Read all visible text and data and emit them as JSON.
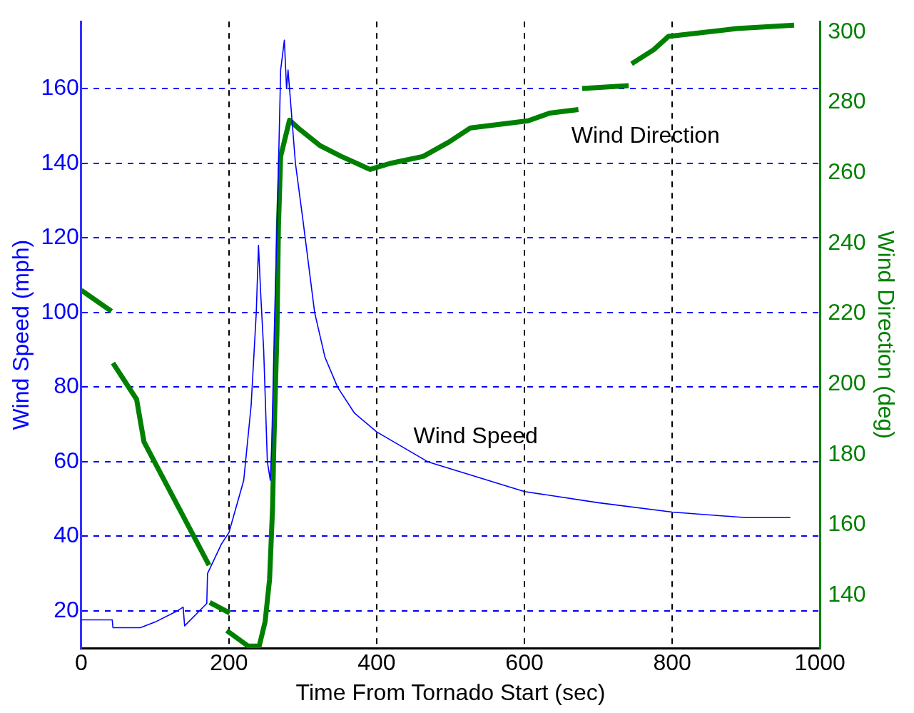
{
  "chart_data": {
    "type": "line",
    "xlabel": "Time From Tornado Start (sec)",
    "ylabel": "Wind Speed (mph)",
    "y2label": "Wind Direction (deg)",
    "xlim": [
      0,
      1000
    ],
    "xticks": [
      0,
      200,
      400,
      600,
      800,
      1000
    ],
    "ylim": [
      10,
      178
    ],
    "yticks": [
      20,
      40,
      60,
      80,
      100,
      120,
      140,
      160
    ],
    "y2lim": [
      125,
      303
    ],
    "y2ticks": [
      140,
      160,
      180,
      200,
      220,
      240,
      260,
      280,
      300
    ],
    "grid": true,
    "marker": "none",
    "line_style": "solid",
    "series": [
      {
        "color": "#0000ff",
        "x": [
          0,
          42,
          43,
          80,
          100,
          130,
          138,
          140,
          170,
          171,
          190,
          200,
          220,
          230,
          237,
          240,
          243,
          247,
          252,
          256,
          258,
          262,
          266,
          270,
          275,
          278,
          280,
          290,
          300,
          316,
          330,
          347,
          370,
          400,
          469,
          600,
          700,
          800,
          900,
          960
        ],
        "values": [
          17.6,
          17.6,
          15.5,
          15.5,
          17,
          20,
          21,
          16,
          22,
          30,
          38,
          41,
          55,
          75,
          100,
          118,
          105,
          90,
          60,
          55,
          65,
          100,
          130,
          165,
          173,
          160,
          165,
          140,
          125,
          100,
          88,
          80,
          73,
          68,
          60,
          52,
          49,
          46.5,
          45,
          45
        ]
      },
      {
        "color": "#008000",
        "axis": "y2",
        "x": [
          0,
          41,
          42,
          43,
          75,
          85,
          173,
          173.5,
          174,
          201,
          199,
          197,
          226,
          241,
          249,
          255,
          259,
          261,
          265,
          267,
          270,
          282,
          294,
          323,
          352,
          391,
          418,
          463,
          498,
          527,
          605,
          634,
          673,
          675,
          678,
          741,
          743,
          745,
          775,
          795,
          887,
          965
        ],
        "values": [
          226.7,
          220.7,
          null,
          206,
          195.7,
          183.6,
          148.6,
          null,
          138,
          135,
          null,
          130,
          125.6,
          125.6,
          132.6,
          144.6,
          164.6,
          184.6,
          214.7,
          244.7,
          264.7,
          275,
          272.7,
          267.8,
          264.7,
          261,
          262.7,
          264.7,
          268.8,
          272.8,
          274.8,
          277,
          278,
          null,
          284,
          284.8,
          null,
          291,
          295,
          298.8,
          301,
          302
        ]
      }
    ],
    "annotations": [
      "Wind Speed",
      "Wind Direction"
    ]
  }
}
